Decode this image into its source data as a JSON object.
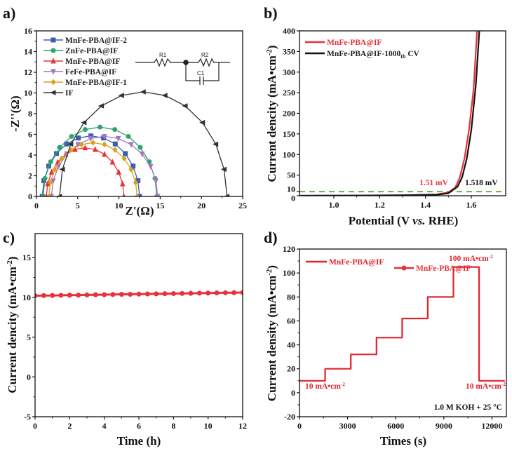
{
  "chart_data": [
    {
      "panel_label": "a)",
      "type": "scatter-line",
      "xlabel": "Z'(Ω)",
      "ylabel": "-Z''(Ω)",
      "xlim": [
        0,
        25
      ],
      "ylim": [
        0,
        16
      ],
      "xticks": [
        0,
        5,
        10,
        15,
        20,
        25
      ],
      "yticks": [
        0,
        2,
        4,
        6,
        8,
        10,
        12,
        14,
        16
      ],
      "grid": false,
      "legend": "top-left",
      "inset_circuit": {
        "labels": [
          "R1",
          "R2",
          "C1"
        ]
      },
      "series": [
        {
          "name": "MnFe-PBA@IF-2",
          "color": "#3a5fb0",
          "marker": "square",
          "x": [
            0.7,
            0.9,
            1.49,
            2.43,
            3.65,
            5.07,
            6.6,
            8.13,
            9.55,
            10.77,
            11.71,
            12.3,
            12.5
          ],
          "y": [
            0,
            1.52,
            2.93,
            4.14,
            5.07,
            5.65,
            5.85,
            5.65,
            5.07,
            4.14,
            2.93,
            1.52,
            0
          ]
        },
        {
          "name": "ZnFe-PBA@IF",
          "color": "#2fa36b",
          "marker": "circle",
          "x": [
            0.8,
            1.03,
            1.72,
            2.82,
            4.25,
            5.91,
            7.7,
            9.49,
            11.15,
            12.58,
            13.68,
            14.37,
            14.6
          ],
          "y": [
            0,
            1.74,
            3.35,
            4.74,
            5.8,
            6.47,
            6.7,
            6.47,
            5.8,
            4.74,
            3.35,
            1.74,
            0
          ]
        },
        {
          "name": "MnFe-PBA@IF",
          "color": "#e8313a",
          "marker": "triangle-up",
          "x": [
            1.2,
            1.36,
            1.83,
            2.58,
            3.55,
            4.68,
            5.9,
            7.12,
            8.25,
            9.22,
            9.97,
            10.44,
            10.6
          ],
          "y": [
            0,
            1.22,
            2.35,
            3.32,
            4.07,
            4.54,
            4.7,
            4.54,
            4.07,
            3.32,
            2.35,
            1.22,
            0
          ]
        },
        {
          "name": "FeFe-PBA@IF",
          "color": "#a374c4",
          "marker": "triangle-down",
          "x": [
            1.8,
            2.02,
            2.66,
            3.69,
            5.03,
            6.58,
            8.25,
            9.92,
            11.48,
            12.81,
            13.84,
            14.48,
            14.7
          ],
          "y": [
            0,
            1.5,
            2.9,
            4.1,
            5.02,
            5.6,
            5.8,
            5.6,
            5.02,
            4.1,
            2.9,
            1.5,
            0
          ]
        },
        {
          "name": "MnFe-PBA@IF-1",
          "color": "#d9a21b",
          "marker": "diamond",
          "x": [
            1.5,
            1.68,
            2.22,
            3.07,
            4.18,
            5.46,
            6.85,
            8.24,
            9.53,
            10.63,
            11.48,
            12.02,
            12.2
          ],
          "y": [
            0,
            1.35,
            2.6,
            3.68,
            4.5,
            5.02,
            5.2,
            5.02,
            4.5,
            3.68,
            2.6,
            1.35,
            0
          ]
        },
        {
          "name": "IF",
          "color": "#333333",
          "marker": "triangle-left",
          "x": [
            2.8,
            3.15,
            4.16,
            5.77,
            7.88,
            10.32,
            12.95,
            15.58,
            18.03,
            20.13,
            21.74,
            22.75,
            23.1
          ],
          "y": [
            0,
            2.62,
            5.05,
            7.14,
            8.75,
            9.76,
            10.1,
            9.76,
            8.75,
            7.14,
            5.05,
            2.62,
            0
          ]
        }
      ]
    },
    {
      "panel_label": "b)",
      "type": "line",
      "xlabel_parts": [
        "Potential (V ",
        "vs.",
        " RHE)"
      ],
      "ylabel": "Current dencity (mA•cm",
      "ylabel_sup": "-2",
      "ylabel_end": ")",
      "xlim": [
        0.85,
        1.75
      ],
      "ylim": [
        0,
        400
      ],
      "xticks": [
        1.0,
        1.2,
        1.4,
        1.6
      ],
      "xtick_labels": [
        "1.0",
        "1.2",
        "1.4",
        "1.6"
      ],
      "yticks": [
        0,
        10,
        50,
        100,
        150,
        200,
        250,
        300,
        350,
        400
      ],
      "grid": false,
      "legend": "top-left",
      "reference_line": {
        "y": 10,
        "color": "#6ab04c",
        "style": "dashed"
      },
      "annotations": [
        {
          "text": "1.51 mV",
          "color": "#e8313a"
        },
        {
          "text": "1.518 mV",
          "color": "#111111"
        }
      ],
      "series": [
        {
          "name": "MnFe-PBA@IF",
          "color": "#e8313a",
          "x": [
            0.85,
            1.3,
            1.45,
            1.5,
            1.53,
            1.55,
            1.57,
            1.59,
            1.61,
            1.625
          ],
          "y": [
            0,
            1,
            3,
            8,
            20,
            45,
            90,
            160,
            260,
            400
          ]
        },
        {
          "name": "MnFe-PBA@IF-1000",
          "name_sub": "th",
          "name_suffix": " CV",
          "color": "#111111",
          "x": [
            0.85,
            1.3,
            1.45,
            1.5,
            1.54,
            1.56,
            1.58,
            1.6,
            1.62,
            1.635
          ],
          "y": [
            0,
            1,
            2.5,
            6,
            22,
            45,
            90,
            160,
            270,
            400
          ]
        }
      ]
    },
    {
      "panel_label": "c)",
      "type": "scatter-line",
      "xlabel": "Time (h)",
      "ylabel": "Current dencity (mA•cm",
      "ylabel_sup": "-2",
      "ylabel_end": ")",
      "xlim": [
        0,
        12
      ],
      "ylim": [
        -5,
        18
      ],
      "xticks": [
        0,
        2,
        4,
        6,
        8,
        10,
        12
      ],
      "yticks": [
        -5,
        0,
        5,
        10,
        15
      ],
      "grid": false,
      "legend": "top-right",
      "series": [
        {
          "name": "MnFe-PBA@IF",
          "color": "#e8313a",
          "marker": "circle",
          "x": [
            0,
            0.5,
            1,
            1.5,
            2,
            2.5,
            3,
            3.5,
            4,
            4.5,
            5,
            5.5,
            6,
            6.5,
            7,
            7.5,
            8,
            8.5,
            9,
            9.5,
            10,
            10.5,
            11,
            11.5,
            12
          ],
          "y": [
            10.2,
            10.22,
            10.23,
            10.25,
            10.27,
            10.28,
            10.3,
            10.32,
            10.33,
            10.35,
            10.37,
            10.38,
            10.4,
            10.42,
            10.43,
            10.45,
            10.47,
            10.48,
            10.5,
            10.52,
            10.53,
            10.55,
            10.57,
            10.58,
            10.6
          ]
        }
      ]
    },
    {
      "panel_label": "d)",
      "type": "line",
      "xlabel": "Times (s)",
      "ylabel": "Current density (mA•cm",
      "ylabel_sup": "-2",
      "ylabel_end": ")",
      "xlim": [
        0,
        12900
      ],
      "ylim": [
        -20,
        120
      ],
      "xticks": [
        0,
        3000,
        6000,
        9000,
        12000
      ],
      "yticks": [
        -20,
        0,
        20,
        40,
        60,
        80,
        100,
        120
      ],
      "grid": false,
      "legend": "top-left",
      "annotations": [
        {
          "text": "10 mA•cm",
          "sup": "-2"
        },
        {
          "text": "100 mA•cm",
          "sup": "-2"
        },
        {
          "text": "10 mA•cm",
          "sup": "-2"
        },
        {
          "text": "1.0 M KOH + 25 °C"
        }
      ],
      "series": [
        {
          "name": "MnFe-PBA@IF",
          "color": "#e0242e",
          "x": [
            0,
            1600,
            1600,
            3200,
            3200,
            4800,
            4800,
            6400,
            6400,
            8000,
            8000,
            9600,
            9600,
            11200,
            11200,
            12800
          ],
          "y": [
            10,
            10,
            20,
            20,
            32,
            32,
            46,
            46,
            62,
            62,
            80,
            80,
            105,
            105,
            10,
            10
          ]
        }
      ]
    }
  ]
}
